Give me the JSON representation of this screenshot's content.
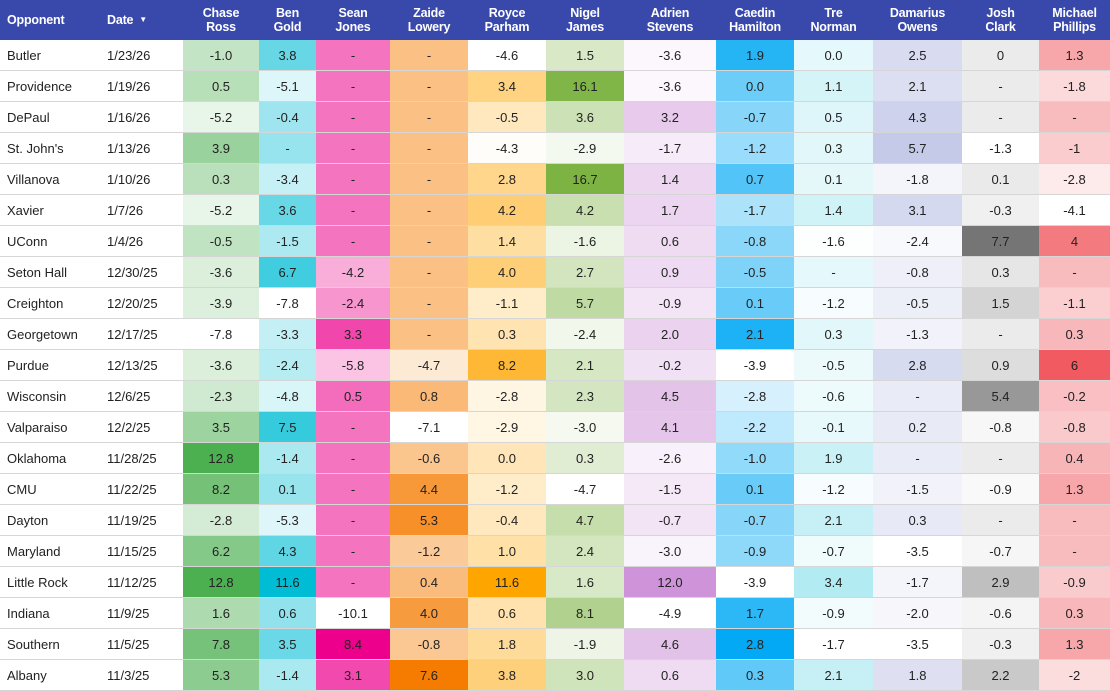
{
  "table": {
    "opponent_header": "Opponent",
    "date_header": "Date",
    "sort_icon": "caret-down-icon",
    "players": [
      {
        "first": "Chase",
        "last": "Ross",
        "color": "#4caf50"
      },
      {
        "first": "Ben",
        "last": "Gold",
        "color": "#00bcd4"
      },
      {
        "first": "Sean",
        "last": "Jones",
        "color": "#ec008c"
      },
      {
        "first": "Zaide",
        "last": "Lowery",
        "color": "#f57c00"
      },
      {
        "first": "Royce",
        "last": "Parham",
        "color": "#ffa500"
      },
      {
        "first": "Nigel",
        "last": "James",
        "color": "#7cb342"
      },
      {
        "first": "Adrien",
        "last": "Stevens",
        "color": "#ce93d8"
      },
      {
        "first": "Caedin",
        "last": "Hamilton",
        "color": "#03a9f4"
      },
      {
        "first": "Tre",
        "last": "Norman",
        "color": "#b2ebf2"
      },
      {
        "first": "Damarius",
        "last": "Owens",
        "color": "#c5cae9"
      },
      {
        "first": "Josh",
        "last": "Clark",
        "color": "#757575"
      },
      {
        "first": "Michael",
        "last": "Phillips",
        "color": "#f05a60"
      }
    ],
    "rows": [
      {
        "opponent": "Butler",
        "date": "1/23/26",
        "values": [
          "-1.0",
          "3.8",
          "-",
          "-",
          "-4.6",
          "1.5",
          "-3.6",
          "1.9",
          "0.0",
          "2.5",
          "0",
          "1.3"
        ]
      },
      {
        "opponent": "Providence",
        "date": "1/19/26",
        "values": [
          "0.5",
          "-5.1",
          "-",
          "-",
          "3.4",
          "16.1",
          "-3.6",
          "0.0",
          "1.1",
          "2.1",
          "-",
          "-1.8"
        ]
      },
      {
        "opponent": "DePaul",
        "date": "1/16/26",
        "values": [
          "-5.2",
          "-0.4",
          "-",
          "-",
          "-0.5",
          "3.6",
          "3.2",
          "-0.7",
          "0.5",
          "4.3",
          "-",
          "-"
        ]
      },
      {
        "opponent": "St. John's",
        "date": "1/13/26",
        "values": [
          "3.9",
          "-",
          "-",
          "-",
          "-4.3",
          "-2.9",
          "-1.7",
          "-1.2",
          "0.3",
          "5.7",
          "-1.3",
          "-1"
        ]
      },
      {
        "opponent": "Villanova",
        "date": "1/10/26",
        "values": [
          "0.3",
          "-3.4",
          "-",
          "-",
          "2.8",
          "16.7",
          "1.4",
          "0.7",
          "0.1",
          "-1.8",
          "0.1",
          "-2.8"
        ]
      },
      {
        "opponent": "Xavier",
        "date": "1/7/26",
        "values": [
          "-5.2",
          "3.6",
          "-",
          "-",
          "4.2",
          "4.2",
          "1.7",
          "-1.7",
          "1.4",
          "3.1",
          "-0.3",
          "-4.1"
        ]
      },
      {
        "opponent": "UConn",
        "date": "1/4/26",
        "values": [
          "-0.5",
          "-1.5",
          "-",
          "-",
          "1.4",
          "-1.6",
          "0.6",
          "-0.8",
          "-1.6",
          "-2.4",
          "7.7",
          "4"
        ]
      },
      {
        "opponent": "Seton Hall",
        "date": "12/30/25",
        "values": [
          "-3.6",
          "6.7",
          "-4.2",
          "-",
          "4.0",
          "2.7",
          "0.9",
          "-0.5",
          "-",
          "-0.8",
          "0.3",
          "-"
        ]
      },
      {
        "opponent": "Creighton",
        "date": "12/20/25",
        "values": [
          "-3.9",
          "-7.8",
          "-2.4",
          "-",
          "-1.1",
          "5.7",
          "-0.9",
          "0.1",
          "-1.2",
          "-0.5",
          "1.5",
          "-1.1"
        ]
      },
      {
        "opponent": "Georgetown",
        "date": "12/17/25",
        "values": [
          "-7.8",
          "-3.3",
          "3.3",
          "-",
          "0.3",
          "-2.4",
          "2.0",
          "2.1",
          "0.3",
          "-1.3",
          "-",
          "0.3"
        ]
      },
      {
        "opponent": "Purdue",
        "date": "12/13/25",
        "values": [
          "-3.6",
          "-2.4",
          "-5.8",
          "-4.7",
          "8.2",
          "2.1",
          "-0.2",
          "-3.9",
          "-0.5",
          "2.8",
          "0.9",
          "6"
        ]
      },
      {
        "opponent": "Wisconsin",
        "date": "12/6/25",
        "values": [
          "-2.3",
          "-4.8",
          "0.5",
          "0.8",
          "-2.8",
          "2.3",
          "4.5",
          "-2.8",
          "-0.6",
          "-",
          "5.4",
          "-0.2"
        ]
      },
      {
        "opponent": "Valparaiso",
        "date": "12/2/25",
        "values": [
          "3.5",
          "7.5",
          "-",
          "-7.1",
          "-2.9",
          "-3.0",
          "4.1",
          "-2.2",
          "-0.1",
          "0.2",
          "-0.8",
          "-0.8"
        ]
      },
      {
        "opponent": "Oklahoma",
        "date": "11/28/25",
        "values": [
          "12.8",
          "-1.4",
          "-",
          "-0.6",
          "0.0",
          "0.3",
          "-2.6",
          "-1.0",
          "1.9",
          "-",
          "-",
          "0.4"
        ]
      },
      {
        "opponent": "CMU",
        "date": "11/22/25",
        "values": [
          "8.2",
          "0.1",
          "-",
          "4.4",
          "-1.2",
          "-4.7",
          "-1.5",
          "0.1",
          "-1.2",
          "-1.5",
          "-0.9",
          "1.3"
        ]
      },
      {
        "opponent": "Dayton",
        "date": "11/19/25",
        "values": [
          "-2.8",
          "-5.3",
          "-",
          "5.3",
          "-0.4",
          "4.7",
          "-0.7",
          "-0.7",
          "2.1",
          "0.3",
          "-",
          "-"
        ]
      },
      {
        "opponent": "Maryland",
        "date": "11/15/25",
        "values": [
          "6.2",
          "4.3",
          "-",
          "-1.2",
          "1.0",
          "2.4",
          "-3.0",
          "-0.9",
          "-0.7",
          "-3.5",
          "-0.7",
          "-"
        ]
      },
      {
        "opponent": "Little Rock",
        "date": "11/12/25",
        "values": [
          "12.8",
          "11.6",
          "-",
          "0.4",
          "11.6",
          "1.6",
          "12.0",
          "-3.9",
          "3.4",
          "-1.7",
          "2.9",
          "-0.9"
        ]
      },
      {
        "opponent": "Indiana",
        "date": "11/9/25",
        "values": [
          "1.6",
          "0.6",
          "-10.1",
          "4.0",
          "0.6",
          "8.1",
          "-4.9",
          "1.7",
          "-0.9",
          "-2.0",
          "-0.6",
          "0.3"
        ]
      },
      {
        "opponent": "Southern",
        "date": "11/5/25",
        "values": [
          "7.8",
          "3.5",
          "8.4",
          "-0.8",
          "1.8",
          "-1.9",
          "4.6",
          "2.8",
          "-1.7",
          "-3.5",
          "-0.3",
          "1.3"
        ]
      },
      {
        "opponent": "Albany",
        "date": "11/3/25",
        "values": [
          "5.3",
          "-1.4",
          "3.1",
          "7.6",
          "3.8",
          "3.0",
          "0.6",
          "0.3",
          "2.1",
          "1.8",
          "2.2",
          "-2"
        ]
      }
    ]
  }
}
